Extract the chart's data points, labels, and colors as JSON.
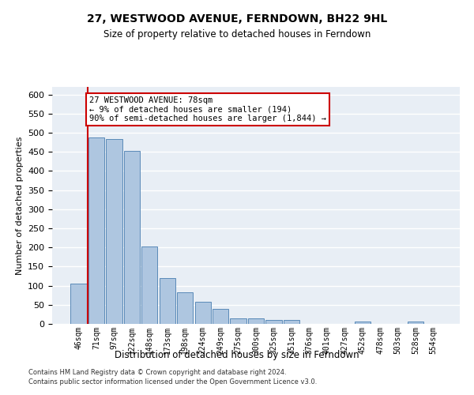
{
  "title": "27, WESTWOOD AVENUE, FERNDOWN, BH22 9HL",
  "subtitle": "Size of property relative to detached houses in Ferndown",
  "xlabel_bottom": "Distribution of detached houses by size in Ferndown",
  "ylabel": "Number of detached properties",
  "categories": [
    "46sqm",
    "71sqm",
    "97sqm",
    "122sqm",
    "148sqm",
    "173sqm",
    "198sqm",
    "224sqm",
    "249sqm",
    "275sqm",
    "300sqm",
    "325sqm",
    "351sqm",
    "376sqm",
    "401sqm",
    "427sqm",
    "452sqm",
    "478sqm",
    "503sqm",
    "528sqm",
    "554sqm"
  ],
  "values": [
    105,
    487,
    484,
    453,
    202,
    120,
    83,
    57,
    40,
    15,
    15,
    10,
    10,
    1,
    0,
    0,
    7,
    0,
    0,
    7,
    0
  ],
  "bar_color": "#aec6e0",
  "bar_edge_color": "#5a8ab8",
  "background_color": "#e8eef5",
  "grid_color": "#ffffff",
  "annotation_text_line1": "27 WESTWOOD AVENUE: 78sqm",
  "annotation_text_line2": "← 9% of detached houses are smaller (194)",
  "annotation_text_line3": "90% of semi-detached houses are larger (1,844) →",
  "annotation_box_facecolor": "#ffffff",
  "annotation_box_edgecolor": "#cc0000",
  "red_line_color": "#cc0000",
  "footnote_line1": "Contains HM Land Registry data © Crown copyright and database right 2024.",
  "footnote_line2": "Contains public sector information licensed under the Open Government Licence v3.0.",
  "ylim": [
    0,
    620
  ],
  "yticks": [
    0,
    50,
    100,
    150,
    200,
    250,
    300,
    350,
    400,
    450,
    500,
    550,
    600
  ]
}
